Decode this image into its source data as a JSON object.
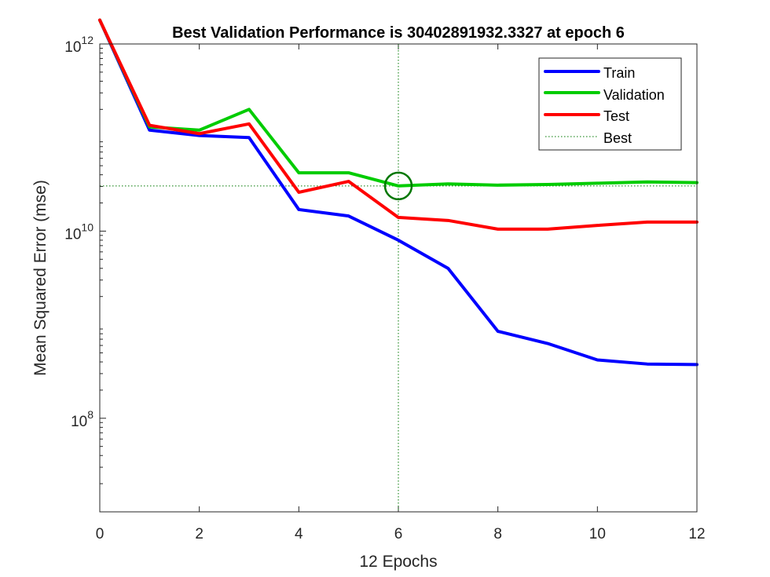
{
  "chart_data": {
    "type": "line",
    "title": "Best Validation Performance is 30402891932.3327 at epoch 6",
    "xlabel": "12 Epochs",
    "ylabel": "Mean Squared Error  (mse)",
    "xlim": [
      0,
      12
    ],
    "ylim": [
      10000000,
      1000000000000
    ],
    "yscale": "log",
    "xticks": [
      "0",
      "2",
      "4",
      "6",
      "8",
      "10",
      "12"
    ],
    "yticks": [
      {
        "base": "10",
        "exp": "12",
        "value": 1000000000000
      },
      {
        "base": "10",
        "exp": "10",
        "value": 10000000000
      },
      {
        "base": "10",
        "exp": "8",
        "value": 100000000
      }
    ],
    "x": [
      0,
      1,
      2,
      3,
      4,
      5,
      6,
      7,
      8,
      9,
      10,
      11,
      12
    ],
    "series": [
      {
        "name": "Train",
        "color": "#0000ff",
        "values": [
          1800000000000,
          120000000000,
          105000000000,
          100000000000,
          17000000000,
          14500000000,
          8000000000,
          4000000000,
          850000000,
          630000000,
          420000000,
          380000000,
          375000000
        ]
      },
      {
        "name": "Validation",
        "color": "#00cc00",
        "values": [
          1800000000000,
          130000000000,
          120000000000,
          200000000000,
          42000000000,
          42000000000,
          30402891932.3327,
          32000000000,
          31000000000,
          31500000000,
          32500000000,
          33500000000,
          33000000000
        ]
      },
      {
        "name": "Test",
        "color": "#ff0000",
        "values": [
          1800000000000,
          135000000000,
          110000000000,
          140000000000,
          26000000000,
          34000000000,
          14000000000,
          13000000000,
          10500000000,
          10500000000,
          11500000000,
          12500000000,
          12500000000
        ]
      }
    ],
    "best": {
      "epoch": 6,
      "value": 30402891932.3327,
      "label": "Best",
      "color": "#007700"
    },
    "legend": {
      "placement": "top-right"
    },
    "grid": false
  }
}
